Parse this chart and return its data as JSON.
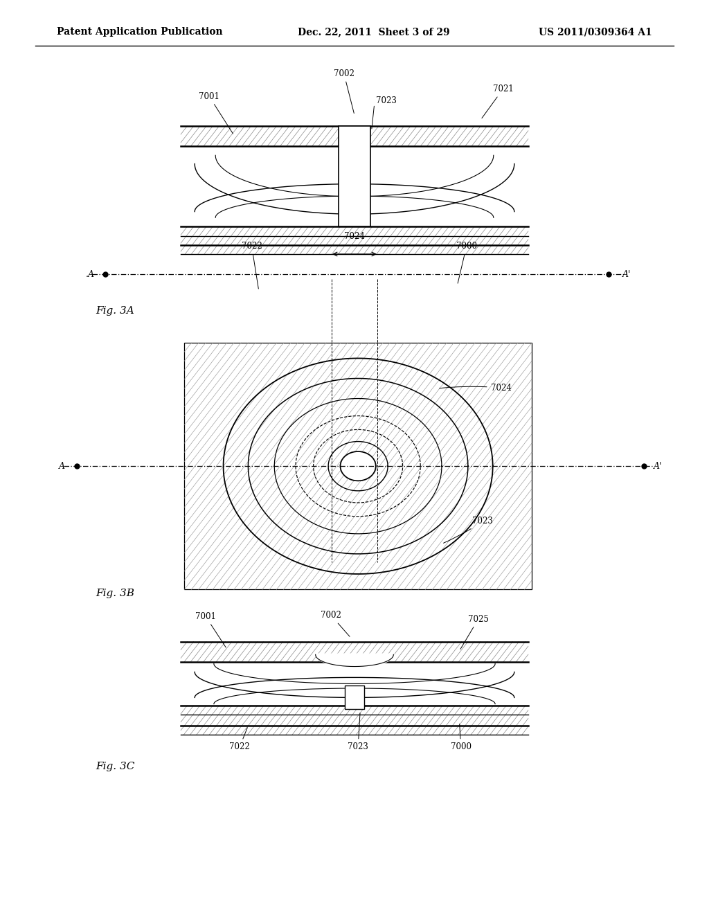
{
  "bg_color": "#ffffff",
  "header_left": "Patent Application Publication",
  "header_mid": "Dec. 22, 2011  Sheet 3 of 29",
  "header_right": "US 2011/0309364 A1",
  "fig3a_label": "Fig. 3A",
  "fig3b_label": "Fig. 3B",
  "fig3c_label": "Fig. 3C"
}
